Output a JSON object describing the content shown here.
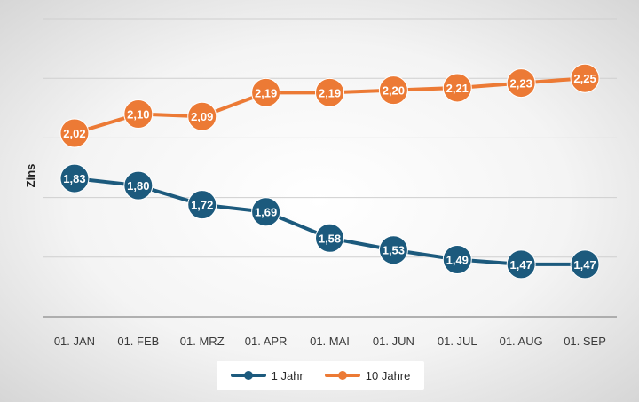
{
  "chart_data": {
    "type": "line",
    "title": "",
    "xlabel": "",
    "ylabel": "Zins",
    "categories": [
      "01. JAN",
      "01. FEB",
      "01. MRZ",
      "01. APR",
      "01. MAI",
      "01. JUN",
      "01. JUL",
      "01. AUG",
      "01. SEP"
    ],
    "series": [
      {
        "name": "1 Jahr",
        "color": "#1c5a7d",
        "values": [
          1.83,
          1.8,
          1.72,
          1.69,
          1.58,
          1.53,
          1.49,
          1.47,
          1.47
        ],
        "labels": [
          "1,83",
          "1,80",
          "1,72",
          "1,69",
          "1,58",
          "1,53",
          "1,49",
          "1,47",
          "1,47"
        ]
      },
      {
        "name": "10 Jahre",
        "color": "#ec7a35",
        "values": [
          2.02,
          2.1,
          2.09,
          2.19,
          2.19,
          2.2,
          2.21,
          2.23,
          2.25
        ],
        "labels": [
          "2,02",
          "2,10",
          "2,09",
          "2,19",
          "2,19",
          "2,20",
          "2,21",
          "2,23",
          "2,25"
        ]
      }
    ],
    "ylim": [
      1.25,
      2.5
    ],
    "grid": true,
    "legend": "bottom"
  }
}
